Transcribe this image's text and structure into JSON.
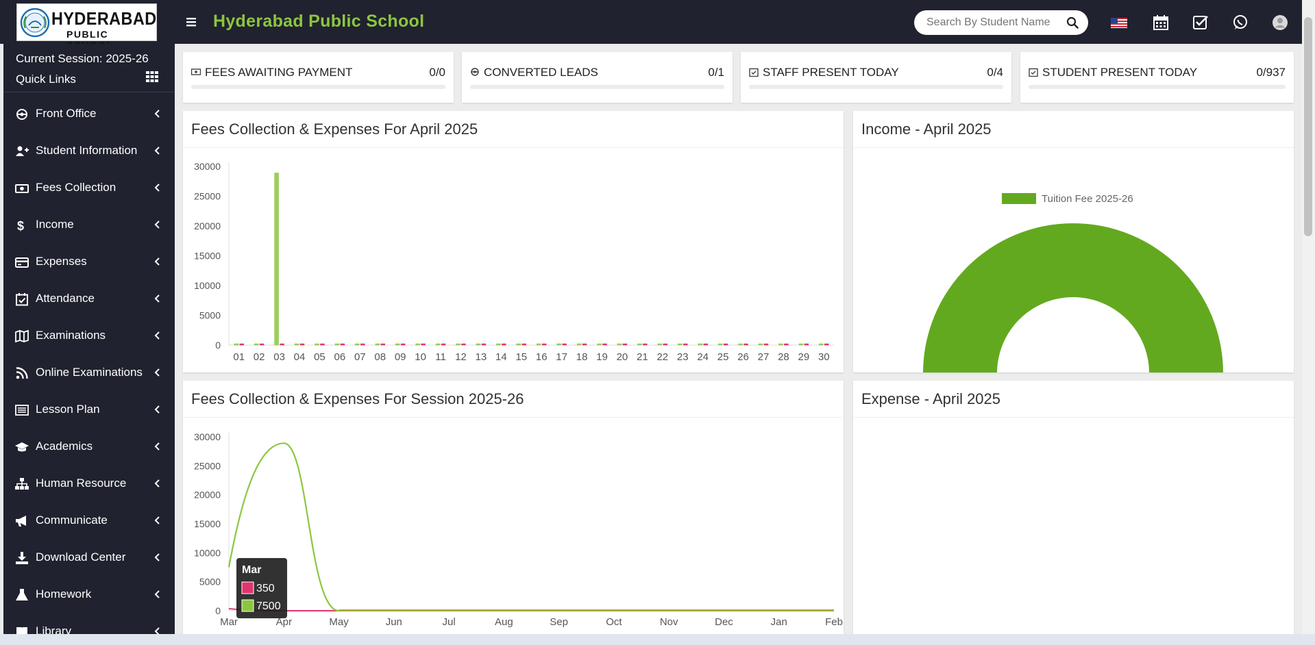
{
  "header": {
    "logo_line1": "HYDERABAD",
    "logo_line2": "PUBLIC SCHOOL",
    "app_title": "Hyderabad Public School",
    "search_placeholder": "Search By Student Name",
    "icons": [
      "menu-icon",
      "search-icon",
      "us-flag-icon",
      "calendar-icon",
      "task-check-icon",
      "whatsapp-icon",
      "user-avatar-icon"
    ]
  },
  "sidebar": {
    "session_label": "Current Session: 2025-26",
    "quick_links_label": "Quick Links",
    "items": [
      {
        "label": "Front Office",
        "icon": "front-office-icon"
      },
      {
        "label": "Student Information",
        "icon": "user-plus-icon"
      },
      {
        "label": "Fees Collection",
        "icon": "money-icon"
      },
      {
        "label": "Income",
        "icon": "dollar-icon"
      },
      {
        "label": "Expenses",
        "icon": "credit-card-icon"
      },
      {
        "label": "Attendance",
        "icon": "calendar-check-icon"
      },
      {
        "label": "Examinations",
        "icon": "map-icon"
      },
      {
        "label": "Online Examinations",
        "icon": "rss-icon"
      },
      {
        "label": "Lesson Plan",
        "icon": "list-alt-icon"
      },
      {
        "label": "Academics",
        "icon": "graduation-cap-icon"
      },
      {
        "label": "Human Resource",
        "icon": "sitemap-icon"
      },
      {
        "label": "Communicate",
        "icon": "bullhorn-icon"
      },
      {
        "label": "Download Center",
        "icon": "download-icon"
      },
      {
        "label": "Homework",
        "icon": "flask-icon"
      },
      {
        "label": "Library",
        "icon": "book-icon"
      }
    ]
  },
  "stats": [
    {
      "label": "FEES AWAITING PAYMENT",
      "value": "0/0",
      "progress": 0,
      "icon": "money-icon"
    },
    {
      "label": "CONVERTED LEADS",
      "value": "0/1",
      "progress": 0,
      "icon": "leads-icon"
    },
    {
      "label": "STAFF PRESENT TODAY",
      "value": "0/4",
      "progress": 0,
      "icon": "calendar-check-icon"
    },
    {
      "label": "STUDENT PRESENT TODAY",
      "value": "0/937",
      "progress": 0,
      "icon": "calendar-check-icon"
    }
  ],
  "panels": {
    "monthly_title": "Fees Collection & Expenses For April 2025",
    "income_title": "Income - April 2025",
    "session_title": "Fees Collection & Expenses For Session 2025-26",
    "expense_title": "Expense - April 2025"
  },
  "colors": {
    "sidebar_bg": "#20222f",
    "title_green": "#8cc63f",
    "collection_green": "#8cc63f",
    "expense_pink": "#e0356d",
    "pie_green": "#63a91f"
  },
  "chart_data": [
    {
      "type": "bar",
      "title": "Fees Collection & Expenses For April 2025",
      "categories": [
        "01",
        "02",
        "03",
        "04",
        "05",
        "06",
        "07",
        "08",
        "09",
        "10",
        "11",
        "12",
        "13",
        "14",
        "15",
        "16",
        "17",
        "18",
        "19",
        "20",
        "21",
        "22",
        "23",
        "24",
        "25",
        "26",
        "27",
        "28",
        "29",
        "30"
      ],
      "series": [
        {
          "values": [
            0,
            0,
            28900,
            0,
            0,
            0,
            0,
            0,
            0,
            0,
            0,
            0,
            0,
            0,
            0,
            0,
            0,
            0,
            0,
            0,
            0,
            0,
            0,
            0,
            0,
            0,
            0,
            0,
            0,
            0
          ],
          "color": "#8cc63f"
        },
        {
          "values": [
            0,
            0,
            0,
            0,
            0,
            0,
            0,
            0,
            0,
            0,
            0,
            0,
            0,
            0,
            0,
            0,
            0,
            0,
            0,
            0,
            0,
            0,
            0,
            0,
            0,
            0,
            0,
            0,
            0,
            0
          ],
          "color": "#e0356d"
        }
      ],
      "yticks": [
        "0",
        "5000",
        "10000",
        "15000",
        "20000",
        "25000",
        "30000"
      ],
      "ylim": [
        0,
        30000
      ],
      "grid": false
    },
    {
      "type": "pie",
      "title": "Income - April 2025",
      "legend": [
        "Tuition Fee 2025-26"
      ],
      "legend_position": "top",
      "values": [
        28900
      ],
      "shape": "semi-doughnut"
    },
    {
      "type": "line",
      "title": "Fees Collection & Expenses For Session 2025-26",
      "categories": [
        "Mar",
        "Apr",
        "May",
        "Jun",
        "Jul",
        "Aug",
        "Sep",
        "Oct",
        "Nov",
        "Dec",
        "Jan",
        "Feb"
      ],
      "series": [
        {
          "values": [
            350,
            0,
            0,
            0,
            0,
            0,
            0,
            0,
            0,
            0,
            0,
            0
          ],
          "color": "#e0356d"
        },
        {
          "values": [
            7500,
            28900,
            0,
            0,
            0,
            0,
            0,
            0,
            0,
            0,
            0,
            0
          ],
          "color": "#8cc63f"
        }
      ],
      "yticks": [
        "0",
        "5000",
        "10000",
        "15000",
        "20000",
        "25000",
        "30000"
      ],
      "ylim": [
        0,
        30000
      ],
      "tooltip": {
        "title": "Mar",
        "items": [
          "350",
          "7500"
        ]
      }
    }
  ]
}
